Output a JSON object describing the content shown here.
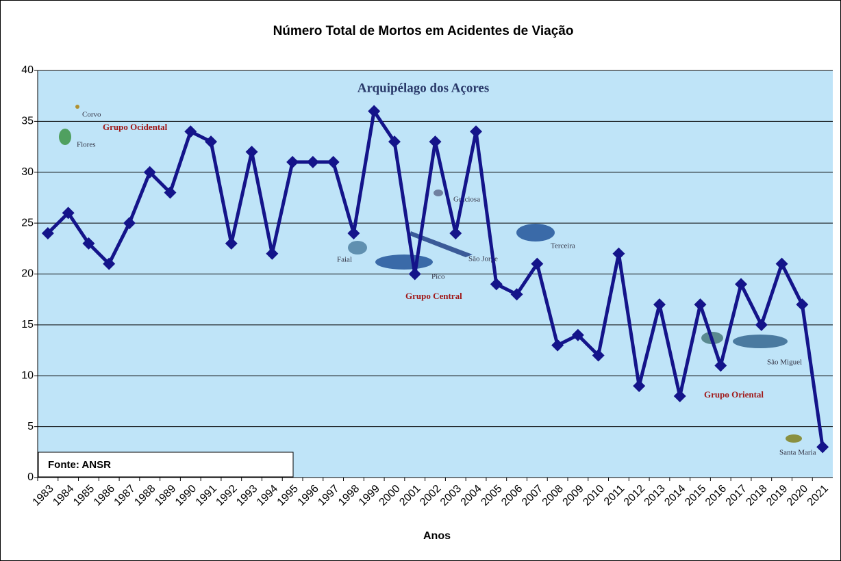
{
  "chart_data": {
    "type": "line",
    "title": "Número Total de Mortos em Acidentes de Viação",
    "x_label": "Anos",
    "source": "Fonte: ANSR",
    "categories": [
      "1983",
      "1984",
      "1985",
      "1986",
      "1987",
      "1988",
      "1989",
      "1990",
      "1991",
      "1992",
      "1993",
      "1994",
      "1995",
      "1996",
      "1997",
      "1998",
      "1999",
      "2000",
      "2001",
      "2002",
      "2003",
      "2004",
      "2005",
      "2006",
      "2007",
      "2008",
      "2009",
      "2010",
      "2011",
      "2012",
      "2013",
      "2014",
      "2015",
      "2016",
      "2017",
      "2018",
      "2019",
      "2020",
      "2021"
    ],
    "values": [
      24,
      26,
      23,
      21,
      25,
      30,
      28,
      34,
      33,
      23,
      32,
      22,
      31,
      31,
      31,
      24,
      36,
      33,
      20,
      33,
      24,
      34,
      19,
      18,
      21,
      13,
      14,
      12,
      22,
      9,
      17,
      8,
      17,
      11,
      19,
      15,
      21,
      17,
      3
    ],
    "color": "#14148a",
    "ylim": [
      0,
      40
    ],
    "yticks": [
      0,
      5,
      10,
      15,
      20,
      25,
      30,
      35,
      40
    ],
    "grid": true,
    "annotations": [
      "Arquipélago dos Açores",
      "Corvo",
      "Flores",
      "Grupo Ocidental",
      "Graciosa",
      "Faial",
      "Pico",
      "São Jorge",
      "Terceira",
      "Grupo Central",
      "São Miguel",
      "Grupo Oriental",
      "Santa Maria"
    ]
  }
}
